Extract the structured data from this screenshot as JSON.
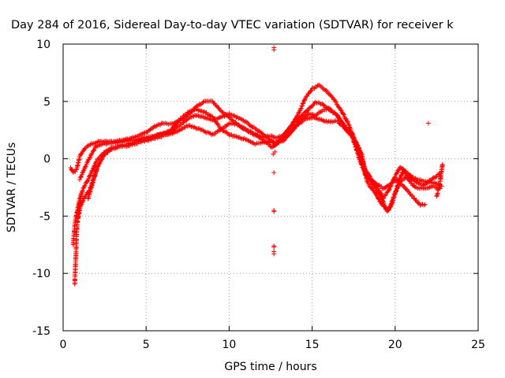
{
  "chart_data": {
    "type": "scatter",
    "title": "Day 284 of 2016, Sidereal Day-to-day VTEC variation (SDTVAR) for receiver k",
    "xlabel": "GPS time / hours",
    "ylabel": "SDTVAR / TECUs",
    "xlim": [
      0,
      25
    ],
    "ylim": [
      -15,
      10
    ],
    "xticks": [
      0,
      5,
      10,
      15,
      20,
      25
    ],
    "yticks": [
      -15,
      -10,
      -5,
      0,
      5,
      10
    ],
    "xtick_labels": [
      "0",
      "5",
      "10",
      "15",
      "20",
      "25"
    ],
    "ytick_labels": [
      "-15",
      "-10",
      "-5",
      "0",
      "5",
      "10"
    ],
    "grid": true,
    "marker": "+",
    "color": "#ff0000",
    "tracks": [
      [
        [
          0.45,
          -0.8
        ],
        [
          0.6,
          -1.2
        ],
        [
          0.8,
          -1.0
        ],
        [
          1.0,
          0.2
        ],
        [
          1.3,
          0.9
        ],
        [
          1.7,
          1.3
        ],
        [
          2.2,
          1.5
        ],
        [
          3.0,
          1.5
        ],
        [
          3.8,
          1.7
        ],
        [
          4.5,
          2.0
        ],
        [
          5.0,
          2.3
        ],
        [
          5.5,
          2.8
        ],
        [
          6.0,
          3.1
        ],
        [
          6.5,
          3.0
        ],
        [
          7.0,
          3.3
        ],
        [
          7.5,
          3.8
        ],
        [
          8.0,
          4.5
        ],
        [
          8.5,
          5.0
        ],
        [
          9.0,
          5.0
        ],
        [
          9.5,
          4.2
        ],
        [
          10.0,
          3.6
        ],
        [
          10.5,
          3.0
        ],
        [
          11.0,
          2.5
        ],
        [
          11.5,
          2.1
        ],
        [
          12.0,
          1.9
        ],
        [
          12.5,
          2.0
        ],
        [
          12.8,
          1.8
        ],
        [
          13.3,
          2.1
        ],
        [
          13.8,
          3.0
        ],
        [
          14.2,
          4.0
        ],
        [
          14.6,
          5.3
        ],
        [
          15.0,
          6.1
        ],
        [
          15.4,
          6.4
        ],
        [
          15.8,
          6.0
        ],
        [
          16.3,
          5.2
        ],
        [
          16.8,
          4.1
        ],
        [
          17.2,
          3.0
        ],
        [
          17.5,
          1.8
        ],
        [
          17.8,
          0.5
        ],
        [
          18.0,
          -0.5
        ],
        [
          18.3,
          -1.5
        ],
        [
          18.8,
          -2.2
        ],
        [
          19.3,
          -3.4
        ],
        [
          19.6,
          -2.8
        ],
        [
          20.0,
          -1.5
        ],
        [
          20.3,
          -0.7
        ],
        [
          20.7,
          -1.2
        ],
        [
          21.2,
          -2.0
        ],
        [
          21.7,
          -2.3
        ],
        [
          22.2,
          -1.8
        ],
        [
          22.7,
          -1.3
        ]
      ],
      [
        [
          1.0,
          -1.8
        ],
        [
          1.3,
          -0.8
        ],
        [
          1.7,
          0.4
        ],
        [
          2.0,
          1.1
        ],
        [
          2.5,
          1.3
        ],
        [
          3.5,
          1.5
        ],
        [
          4.5,
          1.7
        ],
        [
          5.5,
          2.0
        ],
        [
          6.5,
          2.4
        ],
        [
          7.0,
          2.9
        ],
        [
          7.5,
          3.5
        ],
        [
          8.0,
          3.8
        ],
        [
          8.5,
          3.6
        ],
        [
          9.0,
          3.4
        ],
        [
          9.5,
          3.6
        ],
        [
          10.0,
          3.9
        ],
        [
          10.5,
          3.6
        ],
        [
          11.0,
          3.2
        ],
        [
          11.5,
          2.7
        ],
        [
          12.0,
          2.2
        ],
        [
          12.5,
          1.6
        ],
        [
          12.8,
          1.2
        ],
        [
          13.2,
          1.8
        ],
        [
          13.7,
          2.8
        ],
        [
          14.2,
          3.5
        ],
        [
          14.7,
          4.2
        ],
        [
          15.2,
          4.9
        ],
        [
          15.6,
          4.8
        ],
        [
          16.0,
          4.3
        ],
        [
          16.5,
          3.8
        ],
        [
          17.0,
          2.8
        ],
        [
          17.4,
          2.2
        ],
        [
          17.8,
          1.0
        ],
        [
          18.2,
          -1.0
        ],
        [
          18.7,
          -2.0
        ],
        [
          19.3,
          -2.6
        ],
        [
          19.6,
          -2.3
        ],
        [
          20.1,
          -1.8
        ],
        [
          20.5,
          -2.4
        ],
        [
          21.0,
          -3.2
        ],
        [
          21.5,
          -4.0
        ],
        [
          21.8,
          -4.0
        ]
      ],
      [
        [
          0.6,
          -7.5
        ],
        [
          0.7,
          -5.8
        ],
        [
          0.85,
          -4.5
        ],
        [
          1.0,
          -3.5
        ],
        [
          1.2,
          -2.6
        ],
        [
          1.5,
          -1.8
        ],
        [
          1.8,
          -0.9
        ],
        [
          2.0,
          -0.2
        ],
        [
          2.5,
          0.6
        ],
        [
          3.0,
          1.0
        ],
        [
          4.0,
          1.3
        ],
        [
          5.0,
          1.7
        ],
        [
          6.0,
          2.2
        ],
        [
          6.5,
          2.5
        ],
        [
          7.0,
          3.4
        ],
        [
          7.5,
          4.0
        ],
        [
          8.0,
          4.3
        ],
        [
          8.5,
          4.1
        ],
        [
          9.0,
          3.6
        ],
        [
          9.5,
          2.6
        ],
        [
          10.0,
          2.1
        ],
        [
          10.5,
          1.9
        ],
        [
          11.0,
          1.7
        ],
        [
          11.5,
          1.3
        ],
        [
          12.0,
          1.4
        ],
        [
          12.5,
          1.5
        ],
        [
          13.0,
          1.4
        ],
        [
          13.3,
          1.6
        ],
        [
          13.8,
          2.4
        ],
        [
          14.3,
          3.4
        ],
        [
          14.8,
          3.9
        ],
        [
          15.2,
          3.8
        ],
        [
          15.6,
          4.2
        ],
        [
          16.0,
          4.4
        ],
        [
          16.5,
          3.8
        ],
        [
          16.9,
          2.9
        ],
        [
          17.4,
          2.0
        ],
        [
          17.8,
          0.2
        ],
        [
          18.2,
          -1.4
        ],
        [
          18.7,
          -2.3
        ],
        [
          19.2,
          -3.5
        ],
        [
          19.5,
          -4.6
        ],
        [
          19.8,
          -4.0
        ],
        [
          20.2,
          -2.0
        ],
        [
          20.5,
          -1.0
        ],
        [
          20.9,
          -2.0
        ],
        [
          21.2,
          -2.5
        ],
        [
          21.7,
          -2.6
        ],
        [
          22.3,
          -2.4
        ],
        [
          22.7,
          -2.6
        ]
      ],
      [
        [
          1.5,
          -3.5
        ],
        [
          1.8,
          -2.0
        ],
        [
          2.0,
          -0.9
        ],
        [
          2.5,
          0.4
        ],
        [
          3.0,
          0.9
        ],
        [
          4.0,
          1.2
        ],
        [
          5.0,
          1.6
        ],
        [
          6.0,
          2.0
        ],
        [
          6.5,
          2.2
        ],
        [
          7.0,
          2.5
        ],
        [
          7.5,
          2.9
        ],
        [
          8.0,
          2.7
        ],
        [
          8.5,
          2.4
        ],
        [
          9.0,
          2.1
        ],
        [
          9.5,
          2.5
        ],
        [
          10.0,
          3.1
        ],
        [
          10.5,
          3.0
        ],
        [
          11.0,
          2.6
        ],
        [
          11.5,
          2.2
        ],
        [
          12.0,
          1.7
        ],
        [
          12.6,
          1.0
        ],
        [
          13.0,
          1.5
        ],
        [
          13.5,
          2.1
        ],
        [
          14.0,
          2.8
        ],
        [
          14.5,
          3.4
        ],
        [
          15.0,
          3.6
        ],
        [
          15.5,
          3.4
        ],
        [
          16.0,
          3.2
        ],
        [
          16.5,
          3.3
        ],
        [
          17.0,
          2.6
        ],
        [
          17.5,
          1.8
        ],
        [
          18.0,
          0.3
        ],
        [
          18.3,
          -2.0
        ],
        [
          18.8,
          -3.0
        ],
        [
          19.2,
          -4.0
        ],
        [
          19.6,
          -4.5
        ],
        [
          20.0,
          -3.0
        ],
        [
          20.3,
          -2.0
        ],
        [
          20.8,
          -1.4
        ],
        [
          21.3,
          -1.8
        ],
        [
          22.0,
          -2.0
        ],
        [
          22.6,
          -2.2
        ],
        [
          22.8,
          -2.4
        ]
      ],
      [
        [
          0.7,
          -10.9
        ],
        [
          0.75,
          -9.0
        ],
        [
          0.8,
          -7.2
        ],
        [
          0.85,
          -5.6
        ],
        [
          0.95,
          -4.3
        ],
        [
          1.1,
          -3.1
        ]
      ],
      [
        [
          0.9,
          -5.2
        ],
        [
          1.05,
          -4.1
        ],
        [
          1.3,
          -3.3
        ],
        [
          1.6,
          -2.7
        ],
        [
          1.9,
          -1.5
        ],
        [
          2.1,
          -0.6
        ]
      ],
      [
        [
          22.5,
          -3.3
        ],
        [
          22.6,
          -2.7
        ],
        [
          22.7,
          -2.0
        ],
        [
          22.75,
          -1.5
        ],
        [
          22.8,
          -1.0
        ],
        [
          22.85,
          -0.5
        ]
      ]
    ],
    "outliers": [
      [
        12.7,
        9.7
      ],
      [
        12.7,
        9.5
      ],
      [
        12.7,
        -1.2
      ],
      [
        12.7,
        -4.5
      ],
      [
        12.7,
        -4.6
      ],
      [
        12.7,
        -7.6
      ],
      [
        12.7,
        -7.7
      ],
      [
        12.7,
        -8.1
      ],
      [
        12.7,
        -8.3
      ],
      [
        22.0,
        3.1
      ],
      [
        12.65,
        0.4
      ],
      [
        12.75,
        0.6
      ]
    ]
  }
}
